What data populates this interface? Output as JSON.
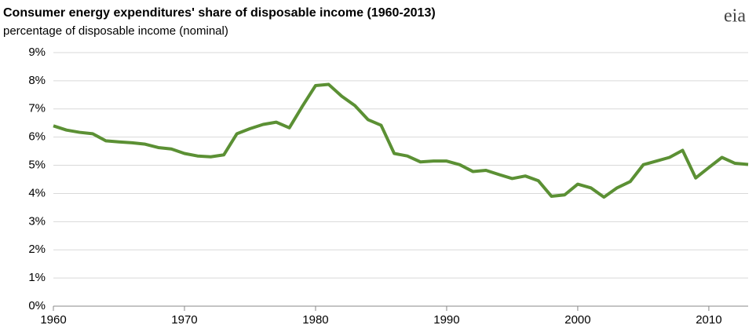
{
  "chart_data": {
    "type": "line",
    "title": "Consumer energy expenditures' share of disposable income (1960-2013)",
    "subtitle": "percentage of disposable income (nominal)",
    "logo": "eia",
    "x": [
      1960,
      1961,
      1962,
      1963,
      1964,
      1965,
      1966,
      1967,
      1968,
      1969,
      1970,
      1971,
      1972,
      1973,
      1974,
      1975,
      1976,
      1977,
      1978,
      1979,
      1980,
      1981,
      1982,
      1983,
      1984,
      1985,
      1986,
      1987,
      1988,
      1989,
      1990,
      1991,
      1992,
      1993,
      1994,
      1995,
      1996,
      1997,
      1998,
      1999,
      2000,
      2001,
      2002,
      2003,
      2004,
      2005,
      2006,
      2007,
      2008,
      2009,
      2010,
      2011,
      2012,
      2013
    ],
    "series": [
      {
        "color": "#5b9034",
        "values": [
          6.4,
          6.25,
          6.17,
          6.12,
          5.87,
          5.83,
          5.8,
          5.75,
          5.63,
          5.58,
          5.42,
          5.33,
          5.3,
          5.37,
          6.12,
          6.3,
          6.45,
          6.53,
          6.33,
          7.1,
          7.83,
          7.87,
          7.45,
          7.12,
          6.62,
          6.42,
          5.42,
          5.33,
          5.12,
          5.15,
          5.15,
          5.02,
          4.78,
          4.82,
          4.67,
          4.53,
          4.62,
          4.45,
          3.9,
          3.95,
          4.33,
          4.2,
          3.87,
          4.2,
          4.42,
          5.02,
          5.15,
          5.28,
          5.53,
          4.55,
          4.92,
          5.28,
          5.07,
          5.03
        ]
      }
    ],
    "xlim": [
      1960,
      2013
    ],
    "xticks": [
      1960,
      1970,
      1980,
      1990,
      2000,
      2010
    ],
    "ylim": [
      0,
      9
    ],
    "yticks": [
      {
        "value": 0,
        "label": "0%"
      },
      {
        "value": 1,
        "label": "1%"
      },
      {
        "value": 2,
        "label": "2%"
      },
      {
        "value": 3,
        "label": "3%"
      },
      {
        "value": 4,
        "label": "4%"
      },
      {
        "value": 5,
        "label": "5%"
      },
      {
        "value": 6,
        "label": "6%"
      },
      {
        "value": 7,
        "label": "7%"
      },
      {
        "value": 8,
        "label": "8%"
      },
      {
        "value": 9,
        "label": "9%"
      }
    ],
    "grid": true
  }
}
